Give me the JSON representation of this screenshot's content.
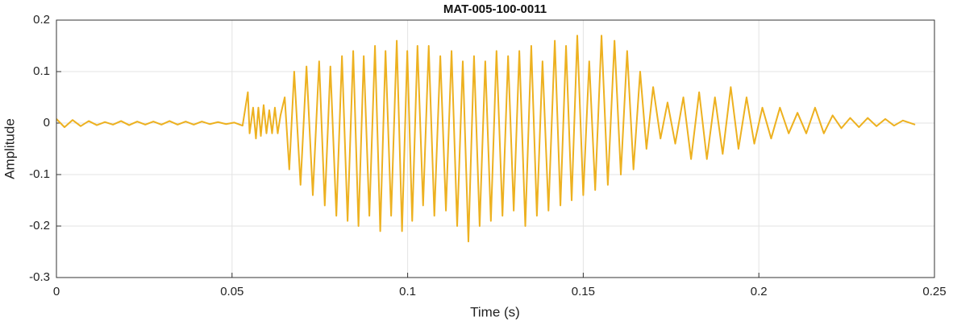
{
  "chart_data": {
    "type": "line",
    "title": "MAT-005-100-0011",
    "xlabel": "Time (s)",
    "ylabel": "Amplitude",
    "color": "#EDB120",
    "grid": true,
    "xlim": [
      0,
      0.25
    ],
    "xticks": [
      0,
      0.05,
      0.1,
      0.15,
      0.2,
      0.25
    ],
    "ylim": [
      -0.3,
      0.2
    ],
    "yticks": [
      -0.3,
      -0.2,
      -0.1,
      0,
      0.1,
      0.2
    ],
    "x": [
      0,
      0.0023,
      0.0046,
      0.0069,
      0.0092,
      0.0115,
      0.0138,
      0.0161,
      0.0184,
      0.0207,
      0.023,
      0.0253,
      0.0276,
      0.0299,
      0.0322,
      0.0345,
      0.0368,
      0.0391,
      0.0414,
      0.0437,
      0.046,
      0.0483,
      0.0506,
      0.053,
      0.0545,
      0.055,
      0.056,
      0.0568,
      0.0575,
      0.0582,
      0.059,
      0.0598,
      0.0606,
      0.0614,
      0.0622,
      0.063,
      0.0638,
      0.065,
      0.0663,
      0.0677,
      0.0695,
      0.0712,
      0.073,
      0.0748,
      0.0764,
      0.078,
      0.0797,
      0.0813,
      0.0829,
      0.0845,
      0.086,
      0.0875,
      0.0891,
      0.0907,
      0.0922,
      0.0937,
      0.0953,
      0.0969,
      0.0984,
      0.0999,
      0.1013,
      0.1028,
      0.1044,
      0.106,
      0.1076,
      0.1093,
      0.1109,
      0.1125,
      0.1141,
      0.1157,
      0.1173,
      0.1189,
      0.1205,
      0.1221,
      0.1237,
      0.1253,
      0.127,
      0.1286,
      0.1302,
      0.1318,
      0.1335,
      0.1352,
      0.1368,
      0.1384,
      0.1401,
      0.1419,
      0.1435,
      0.1451,
      0.1467,
      0.1483,
      0.15,
      0.1517,
      0.1534,
      0.1552,
      0.157,
      0.1589,
      0.1607,
      0.1625,
      0.1643,
      0.1662,
      0.168,
      0.1699,
      0.172,
      0.174,
      0.1762,
      0.1785,
      0.1807,
      0.183,
      0.1852,
      0.1875,
      0.1897,
      0.192,
      0.1942,
      0.1965,
      0.1987,
      0.201,
      0.2035,
      0.206,
      0.2085,
      0.211,
      0.2135,
      0.216,
      0.2185,
      0.221,
      0.2235,
      0.226,
      0.2285,
      0.231,
      0.2335,
      0.236,
      0.2385,
      0.241,
      0.2445
    ],
    "values": [
      0.008,
      -0.008,
      0.006,
      -0.006,
      0.004,
      -0.004,
      0.002,
      -0.003,
      0.004,
      -0.004,
      0.003,
      -0.003,
      0.003,
      -0.003,
      0.004,
      -0.003,
      0.003,
      -0.003,
      0.003,
      -0.002,
      0.002,
      -0.002,
      0.001,
      -0.005,
      0.06,
      -0.02,
      0.03,
      -0.03,
      0.03,
      -0.025,
      0.035,
      -0.02,
      0.025,
      -0.02,
      0.03,
      -0.02,
      0.015,
      0.05,
      -0.09,
      0.1,
      -0.12,
      0.11,
      -0.14,
      0.12,
      -0.16,
      0.11,
      -0.18,
      0.13,
      -0.19,
      0.14,
      -0.2,
      0.13,
      -0.18,
      0.15,
      -0.21,
      0.14,
      -0.18,
      0.16,
      -0.21,
      0.14,
      -0.19,
      0.15,
      -0.16,
      0.15,
      -0.18,
      0.13,
      -0.17,
      0.14,
      -0.2,
      0.12,
      -0.23,
      0.13,
      -0.2,
      0.12,
      -0.19,
      0.14,
      -0.18,
      0.13,
      -0.17,
      0.14,
      -0.2,
      0.15,
      -0.18,
      0.12,
      -0.17,
      0.16,
      -0.16,
      0.15,
      -0.15,
      0.17,
      -0.14,
      0.12,
      -0.13,
      0.17,
      -0.12,
      0.16,
      -0.1,
      0.14,
      -0.09,
      0.1,
      -0.05,
      0.07,
      -0.03,
      0.04,
      -0.04,
      0.05,
      -0.07,
      0.06,
      -0.07,
      0.05,
      -0.06,
      0.07,
      -0.05,
      0.05,
      -0.04,
      0.03,
      -0.03,
      0.03,
      -0.02,
      0.02,
      -0.02,
      0.03,
      -0.02,
      0.015,
      -0.01,
      0.01,
      -0.008,
      0.01,
      -0.006,
      0.008,
      -0.005,
      0.005,
      -0.003
    ]
  }
}
